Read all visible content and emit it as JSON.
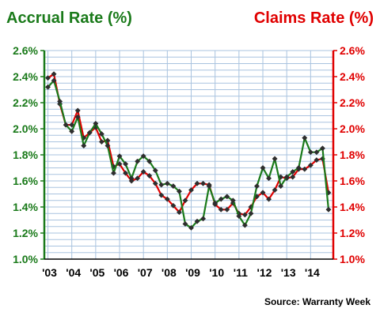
{
  "colors": {
    "accrual": "#1a7a1a",
    "claims": "#e00000",
    "grid": "#a9c3df",
    "marker": "#2e2e2e"
  },
  "chart_data": {
    "type": "line",
    "title_left": "Accrual Rate (%)",
    "title_right": "Claims Rate (%)",
    "source": "Source: Warranty Week",
    "x_tick_labels": [
      "'03",
      "'04",
      "'05",
      "'06",
      "'07",
      "'08",
      "'09",
      "'10",
      "'11",
      "'12",
      "'13",
      "'14"
    ],
    "y_tick_labels": [
      "1.0%",
      "1.2%",
      "1.4%",
      "1.6%",
      "1.8%",
      "2.0%",
      "2.2%",
      "2.4%",
      "2.6%"
    ],
    "ylim": [
      1.0,
      2.6
    ],
    "x_start": 2003.0,
    "x_step": 0.25,
    "grid": true,
    "series": [
      {
        "name": "Accrual Rate (%)",
        "axis": "left",
        "values": [
          2.32,
          2.37,
          2.21,
          2.03,
          1.98,
          2.09,
          1.87,
          1.97,
          2.04,
          1.96,
          1.87,
          1.66,
          1.79,
          1.73,
          1.62,
          1.75,
          1.79,
          1.75,
          1.68,
          1.57,
          1.58,
          1.56,
          1.52,
          1.27,
          1.24,
          1.29,
          1.31,
          1.56,
          1.43,
          1.46,
          1.48,
          1.45,
          1.33,
          1.26,
          1.35,
          1.56,
          1.7,
          1.62,
          1.77,
          1.56,
          1.63,
          1.67,
          1.7,
          1.93,
          1.82,
          1.82,
          1.85,
          1.38
        ]
      },
      {
        "name": "Claims Rate (%)",
        "axis": "right",
        "values": [
          2.39,
          2.42,
          2.19,
          2.03,
          2.03,
          2.14,
          1.93,
          1.97,
          2.01,
          1.9,
          1.91,
          1.71,
          1.73,
          1.66,
          1.6,
          1.62,
          1.67,
          1.64,
          1.58,
          1.49,
          1.46,
          1.41,
          1.36,
          1.45,
          1.53,
          1.58,
          1.58,
          1.57,
          1.42,
          1.38,
          1.38,
          1.43,
          1.35,
          1.34,
          1.4,
          1.48,
          1.51,
          1.46,
          1.53,
          1.63,
          1.62,
          1.63,
          1.69,
          1.69,
          1.72,
          1.76,
          1.77,
          1.51
        ]
      }
    ]
  }
}
